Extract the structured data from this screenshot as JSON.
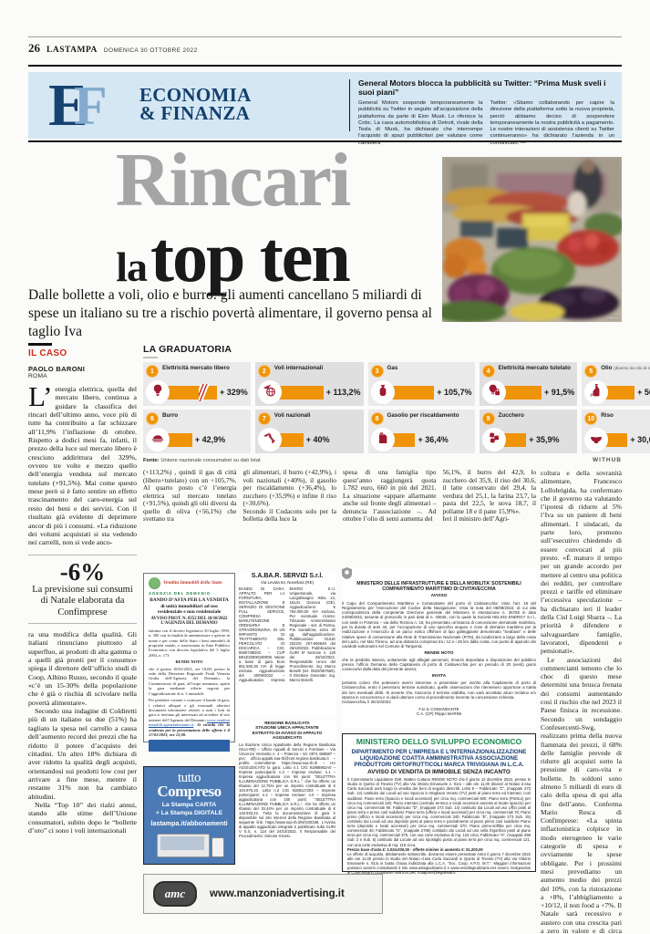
{
  "header": {
    "page_number": "26",
    "masthead": "LASTAMPA",
    "date": "DOMENICA 30 OTTOBRE 2022"
  },
  "banner": {
    "logo_letters": {
      "e": "E",
      "f": "F"
    },
    "section_line1": "ECONOMIA",
    "section_line2": "& FINANZA",
    "gm_article": {
      "title": "General Motors blocca la pubblicità su Twitter: “Prima Musk sveli i suoi piani”",
      "col1": "General Motors sospende temporaneamente la pubblicità su Twitter in seguito all’acquisizione della piattaforma da parte di Elon Musk. Lo riferisce la Cnbc. La casa automobilistica di Detroit, rivale della Tesla di Musk, ha dichiarato che interrompe l’acquisto di spazi pubblicitari per valutare come cambierà",
      "col2": "Twitter: «Stiamo collaborando per capire la direzione della piattaforma sotto la nuova proprietà, perciò abbiamo deciso di sospendere temporaneamente la nostra pubblicità a pagamento. Le nostre interazioni di assistenza clienti su Twitter continueranno» ha dichiarato l’azienda in un comunicato. —"
    }
  },
  "headline": {
    "line1": "Rincari",
    "line2_small": "la",
    "line2_big": "top ten",
    "subhead": "Dalle bollette a voli, olio e burro: gli aumenti cancellano 5 miliardi di spese un italiano su tre a rischio povertà alimentare, il governo pensa al taglio Iva"
  },
  "photo": {
    "caption": "ANSA"
  },
  "article": {
    "kicker": "IL CASO",
    "byline": "PAOLO BARONI",
    "place": "ROMA",
    "drop_initial": "L’",
    "lead": "energia elettrica, quella del mercato libero, continua a guidare la classifica dei rincari dell’ultimo anno, voce più di tutte ha contribuito a far schizzare all’11,9% l’inflazione di ottobre. Rispetto a dodici mesi fa, infatti, il prezzo della luce sul mercato libero è cresciuto addirittura del 329%, ovvero tre volte e mezzo quello dell’energia venduta sul mercato tutelato (+91,5%). Mai come questo mese però si è fatto sentire un effetto trascinamento del caro-energia sul resto dei beni e dei servizi. Con il risultato già evidente di deprimere ancor di più i consumi. «La riduzione dei volumi acquistati si sta vedendo nei carrelli, non si vede anco-",
    "stat": {
      "value": "-6%",
      "caption": "La previsione sui consumi di Natale elaborata da Confimprese"
    },
    "left_paragraphs": [
      "ra una modifica della qualità. Gli italiani rinunciano piuttosto al superfluo, ai prodotti di alta gamma o a quelli già pronti per il consumo» spiega il direttore dell’ufficio studi di Coop, Albino Russo, secondo il quale «c’è un 15-30% della popolazione che è già o rischia di scivolare nella povertà alimentare».",
      "Secondo una indagine di Coldiretti più di un italiano su due (51%) ha tagliato la spesa nel carrello a causa dell’aumento record dei prezzi che ha ridotto il potere d’acquisto dei cittadini. Un altro 18% dichiara di aver ridotto la qualità degli acquisti, orientandosi sui prodotti low cost per arrivare a fine mese, mentre il restante 31% non ha cambiato abitudini.",
      "Nella “Top 10” dei rialzi annui, stando alle stime dell’Unione consumatori, subito dopo le “bollette d’oro” ci sono i voli internazionali"
    ],
    "mid_columns": [
      "(+113,2%) , quindi il gas di città (libero+tutelato) con un +105,7%. Al quarto posto c’è l’energia elettrica sul mercato tutelato (+91,5%), quindi gli olii diversi da quello di oliva (+56,1%) che svettano tra",
      "gli alimentari, il burro (+42,9%), i voli nazionali (+40%), il gasolio per riscaldamento (+36,4%), lo zucchero (+35,9%) e infine il riso (+30,6%).\n   Secondo il Codacons solo per la bolletta della luce la",
      "spesa di una famiglia tipo quest’anno raggiungerà quota 1.782 euro, 660 in più del 2021. La situazione «appare allarmante anche sul fronte degli alimentari – denuncia l’associazione –. Ad ottobre l’olio di semi aumenta del",
      "56,1%, il burro del 42,9, lo zucchero del 35,9, il riso del 30,6, il latte conservato del 29,4, la verdura del 25,1, la farina 23,7, la pasta del 22,5, le uova 18,7, il pollame 18 e il pane 15,9%».\n   Ieri il ministro dell’Agri-"
    ],
    "right_column": [
      "coltura e della sovranità alimentare, Francesco Lollobrigida, ha confermato che il governo sta valutando l’ipotesi di ridurre al 5% l’Iva su un paniere di beni alimentari. I sindacati, da parte loro, premono sull’esecutivo chiedendo di essere convocati al più presto. «È maturo il tempo per un grande accordo per mettere al centro una politica dei redditi, per controllare prezzi e tariffe ed eliminare l’eccessiva speculazione – ha dichiarato ieri il leader della Cisl Luigi Sbarra –. La priorità è difendere e salvaguardare famiglie, lavoratori, dipendenti e pensionati».",
      "Le associazioni dei commercianti temono che lo choc di questo mese determini una brusca frenata dei consumi aumentando così il rischio che nel 2023 il Paese finisca in recessione. Secondo un sondaggio Confesercenti-Swg, realizzato prima della nuova fiammata dei prezzi, il 68% delle famiglie prevede di ridurre gli acquisti sotto la pressione di caro-vita e bollette. In soldoni sono almeno 5 miliardi di euro di calo della spesa di qui alla fine dell’anno. Conferma Mario Resca di Confimprese: «La spinta inflazionistica colpisce in modo eterogeneo le varie categorie di spesa e ovviamente le spese obbligate. Per i prossimi mesi prevediamo un aumento medio dei prezzi del 10%, con la ristorazione a +8%, l’abbigliamento a +10/12, il non food a +7%. Il Natale sarà recessivo e austero con una crescita pari a zero in valore e di circa -6% in volume. Si profila una crisi sociale senza precedenti». —"
    ],
    "copyright": "© RIPRODUZIONE RISERVATA"
  },
  "graduatoria": {
    "title": "LA GRADUATORIA",
    "items": [
      {
        "rank": "1",
        "label": "Elettricità mercato libero",
        "note": "",
        "value": "+ 329%",
        "pct": 329,
        "icon": "lightbulb-icon"
      },
      {
        "rank": "2",
        "label": "Voli internazionali",
        "note": "",
        "value": "+ 113,2%",
        "pct": 113.2,
        "icon": "plane-globe-icon"
      },
      {
        "rank": "3",
        "label": "Gas",
        "note": "",
        "value": "+ 105,7%",
        "pct": 105.7,
        "icon": "gas-bottle-icon"
      },
      {
        "rank": "4",
        "label": "Elettricità mercato tutelato",
        "note": "",
        "value": "+ 91,5%",
        "pct": 91.5,
        "icon": "lightbulb-lock-icon"
      },
      {
        "rank": "5",
        "label": "Olio",
        "note": "(diverso da olio di oliva)",
        "value": "+ 56,1%",
        "pct": 56.1,
        "icon": "oil-bottle-icon"
      },
      {
        "rank": "6",
        "label": "Burro",
        "note": "",
        "value": "+ 42,9%",
        "pct": 42.9,
        "icon": "butter-icon"
      },
      {
        "rank": "7",
        "label": "Voli nazionali",
        "note": "",
        "value": "+ 40%",
        "pct": 40,
        "icon": "plane-italy-icon"
      },
      {
        "rank": "8",
        "label": "Gasolio per riscaldamento",
        "note": "",
        "value": "+ 36,4%",
        "pct": 36.4,
        "icon": "fuel-can-icon"
      },
      {
        "rank": "9",
        "label": "Zucchero",
        "note": "",
        "value": "+ 35,9%",
        "pct": 35.9,
        "icon": "sugar-cubes-icon"
      },
      {
        "rank": "10",
        "label": "Riso",
        "note": "",
        "value": "+ 30,6%",
        "pct": 30.6,
        "icon": "rice-bowl-icon"
      }
    ],
    "source": "Unione nazionale consumatori su dati Istat",
    "source_label": "Fonte:",
    "credit": "WITHUB"
  },
  "chart_data": {
    "type": "bar",
    "title": "LA GRADUATORIA",
    "categories": [
      "Elettricità mercato libero",
      "Voli internazionali",
      "Gas",
      "Elettricità mercato tutelato",
      "Olio (diverso da olio di oliva)",
      "Burro",
      "Voli nazionali",
      "Gasolio per riscaldamento",
      "Zucchero",
      "Riso"
    ],
    "values": [
      329,
      113.2,
      105.7,
      91.5,
      56.1,
      42.9,
      40,
      36.4,
      35.9,
      30.6
    ],
    "unit": "%",
    "source": "Fonte: Unione nazionale consumatori su dati Istat",
    "note": "variazioni percentuali annue dei prezzi; barra del primo valore con interruzione di scala"
  },
  "ads": {
    "demanio": {
      "logo_text": "Vendita Immobili dello Stato",
      "agency_line": "AGENZIA DEL DEMANIO",
      "title": "BANDO D’ASTA PER LA VENDITA di unità immobiliari ad uso residenziale e non residenziale",
      "prot": "AVVISO PROT. N. 8352 DEL 18/10/2022",
      "agency": "L’AGENZIA DEL DEMANIO",
      "body1": "istituita con il decreto legislativo 30 luglio 1999, n. 300 con la finalità di amministrare e gestire in nome e per conto dello Stato i beni immobili di proprietà statale, e trasformata in Ente Pubblico Economico con decreto legislativo del 3 luglio 2003, n. 173",
      "rende_noto": "RENDE NOTO",
      "body2": "che il giorno 18/01/2023, ore 10,00, presso la sede della Direzione Regionale Friuli Venezia Giulia dell’Agenzia del Demanio, la Commissione di gara, all’uopo nominata, aprirà la gara mediante offerte segrete per l’aggiudicazione di n. 3 immobili.",
      "body3": "Per prendere visione o scaricare il bando di gara, i relativi allegati e gli eventuali ulteriori documenti informativi relativi a tutti i lotti in gara si invitano gli interessati ad accedere al sito internet dell’Agenzia del Demanio",
      "link": "www.venditaimmobili.agenziademanio.it",
      "scadenza": "Si ricorda che la scadenza per la presentazione delle offerte è il 17/01/2023, ore 12,00."
    },
    "tutto_compreso": {
      "logo_line1": "tutto",
      "logo_line2": "Compreso",
      "line1": "La Stampa CARTA",
      "line2": "+ La Stampa DIGITALE",
      "url": "lastampa.it/abbonamenti"
    },
    "sabar": {
      "name": "S.A.BA.R. SERVIZI S.r.l.",
      "address": "Via Levata 64, Novellara (RE)",
      "body": "BANDO DI GARA: APPALTO PER LA FORNITURA, INSTALLAZIONE E SERVIZIO DI GESTIONE FULL SERVICE, COMPRESA MANUTENZIONE ORDINARIA E STRAORDINARIA, DI UN IMPIANTO DI TRATTAMENTO DEL PERCOLATO DI DISCARICA – CIG: 8590748D0C – CUP B91E20000180008. Valore a base di gara Euro 851.500,30 IVA di legge esclusa. Aggiudicazione del 30/09/2022 – Aggiudicataria: Impresa EKKRO S.r.l. Unipersonale, via Lungobisagno Istria 14, 16141 Genova (GE). Aggiudicazione: € 764.000,00 IVA esclusa. Per eventuale ricorso: Tribunale Amministrativo Regionale – sez. di Parma, P.le Santafiora, entro 30 gg. dall’aggiudicazione. Pubblicazione GUUE 2022/S 207-590549 del 26/10/2022. Pubblicazione GURI 5ª Sezione n. 126 del 28/10/2022. Responsabile Unico del Procedimento: ing. Marco Boselli (tel. 0522/657569). Il Direttore Generale: ing. Marco Boselli."
    },
    "basilicata": {
      "h1": "REGIONE BASILICATA",
      "h2": "STAZIONE UNICA APPALTANTE",
      "h3": "ESTRATTO DI AVVISO DI APPALTO AGGIUDICATO",
      "body": "La Stazione Unica Appaltante della Regione Basilicata (SUA-RB) – Ufficio Appalti di Servizi e Forniture – Via Vincenzo Verrastro n. 4 – Potenza – tel. 0971 668587 – pec: ufficio.appalti.sua-rb@cert.regione.basilicata.it – profilo committente: https://www.sua-rb.it/ – HA AGGIUDICATO la gara: Lotto n.1 CIG 91888862A0 – Imprese partecipanti: n.3 – Imprese escluse: n.1 – Impresa aggiudicataria con 98 punti: “SELETTRA ILLUMINAZIONE PUBBLICA S.R.L.”, che ha offerto un ribasso del 12,75% per un importo contrattuale di € 104.975,10. Lotto n.2 CIG 9188117203 – Imprese partecipanti: n.2 – Imprese escluse: n.0 – Impresa aggiudicataria con 100 punti: “SELETTRA ILLUMINAZIONE PUBBLICA S.R.L.”, che ha offerto un ribasso del 15,44% per un importo contrattuale di € 133.933,42. Tutta la documentazione di gara è disponibile sul sito internet della Regione Basilicata al seguente link: https://www.sua-rb.it/N/G00338. L’Avviso di appalto aggiudicato integrale è pubblicato sulla GURI V S.S. n. 124 del 24/10/2022. Il Responsabile del Procedimento: Simone Grossi."
    },
    "civitavecchia": {
      "h1": "MINISTERO DELLE INFRASTRUTTURE E DELLA MOBILITA’ SOSTENIBILI",
      "h2": "COMPARTIMENTO MARITTIMO DI CIVITAVECCHIA",
      "avviso": "AVVISO",
      "body1": "Il Capo del Compartimento Marittimo e Comandante del porto di Civitavecchia: Visto l’art. 18 del Regolamento per l’esecuzione del Codice della Navigazione; Vista la nota del 08/08/2022, di cui alla corrispondenza della competente Direzione generale del Ministero in intestazione n. 26755 in data 24/08/2022, assunta al protocollo in pari data al n. 40646, con la quale la Società HELIOS ENERGY S.r.l., con sede in Potenza – via della Tecnica n. 18, ha presentato un’istanza di concessione demaniale marittima, per la durata di anni 40, per l’occupazione di uno specchio acqueo e zone di demanio marittimo per la realizzazione e l’esercizio di un parco eolico offshore di tipo galleggiante denominato “Seabass” e delle relative opere di connessione alla Rete di Trasmissione Nazionale (RTN), da localizzarsi a largo della costa del Lazio, nel Mar Tirreno, ad una distanza compresa tra i 12 e i 26 km dalla costa, con punto di approdo dei cavidotti sottomarini nel Comune di Tarquinia;",
      "rende_noto": "RENDE NOTO",
      "body2": "che la predetta istanza, unitamente agli allegati pervenuti, rimarrà depositata a disposizione del pubblico presso l’ufficio Demanio della Capitaneria di porto di Civitavecchia per un periodo di 20 (venti) giorni consecutivi dalla data del presente avviso;",
      "invita": "INVITA",
      "body3": "pertanto coloro che potessero avervi interesse a presentare per iscritto alla Capitaneria di porto di Civitavecchia, entro il perentorio termine suindicato, quelle osservazioni che ritenessero opportune a tutela dei loro eventuali diritti. Si avverte che, trascorso il termine stabilito, non sarà accettato alcun reclamo e/o istanza in concorrenza e si darà ulteriore corso al procedimento inerente la concessione richiesta.",
      "date": "Civitavecchia, lì 26/10/2022",
      "sign1": "F.to IL COMANDANTE",
      "sign2": "C.A. (CP) Filippo MARINI"
    },
    "mise": {
      "h1": "MINISTERO DELLO SVILUPPO ECONOMICO",
      "h2": "DIPARTIMENTO PER L’IMPRESA E L’INTERNAZIONALIZZAZIONE LIQUIDAZIONE COATTA AMMINISTRATIVA ASSOCIAZIONE PRODUTTORI ORTOFRUTTICOLI MARCA TRIVIGIANA IN L.C.A.",
      "h3": "AVVISO DI VENDITA DI IMMOBILE SENZA INCANTO",
      "body1": "Il Commissario Liquidatore Dott. Matteo Cuttano RENDE NOTO che il giorno 12 dicembre 2022, presso lo studio in Quinto di Treviso (TV) alla Via Vittorio Emanuele n. 91/a – alle ore 11,00 dinanzi al Notaio d.ssa Carla Saccardi avrà luogo la vendita dei beni di seguito descritti. Lotto 6 – Fabbricato “C”, (mappale 273 Sub. 13) costituito dai Locali ad uso Spaccio in Mogliano Veneto (TV) posti al piano terra ed interrato, così suddivisi: Piano terra (Spaccio e locali accessori) per circa mq. commerciali 600; Piano terra (Portico) per circa mq commerciali 130; Piano interrato (centrale termica e locali accessori annessi al locale spaccio) per circa mq. commerciali 90. Fabbricato “D”, (mappale 273 Sub. 14) costituito dai Locali ad uso Uffici posti al piano terra e primo così suddivisi: Piano terra (ufficio e locali accessori) per circa mq. commerciali 75; Piano primo (ufficio e locali accessori) per circa mq. commerciali 340; Fabbricato “E”, (mappale 273 Sub. 15) costituito dai Locali ad uso deposito posti al piano terra e parzialmente al piano primo così suddivisi: Piano terra (deposito e locali accessori) per circa mq. commerciali 570; Piano primo-soffitta per circa mq. commerciali 40; Fabbricato “G”, (mappale 2786) costituito dai Locali ad uso cella frigorifera posti al piano terra per circa mq. commerciali 375, con una corte esclusiva di mq. 124 circa; Fabbricato “H”, (mappale 258 Sub. 2 e Sub. 5) costituito dal Locale ad uso ripostiglio posto al piano terra per circa mq. commerciali 121, con una corte esclusiva di mq. 115 circa.",
      "prezzo": "Prezzo base d’asta €: 1.024.000,00 - offerte minime in aumento €: 51.200,00",
      "body2": "Le offerte di acquisto, debitamente sottoscritte, dovranno essere presentate entro il giorno 7 dicembre 2022 alle ore 11,00 presso lo studio del Notaio d.ssa Carla Saccardi in Quinto di Treviso (TV) alla Via Vittorio Emanuele n. 91/a in busta chiusa indirizzata alla L.C.A. “Soc. Coop. A.P.O. M.T.”. Maggiori informazioni possono avversi consultando il sito www.astegiudiziarie.it e www.venditegiudiziarie.net ovvero rivolgendosi al Commissario Liquidatore indirizzo pec: lcaapomt@legalmail.it."
    },
    "manzoni": {
      "logo": "amc",
      "url": "www.manzoniadvertising.it"
    }
  }
}
